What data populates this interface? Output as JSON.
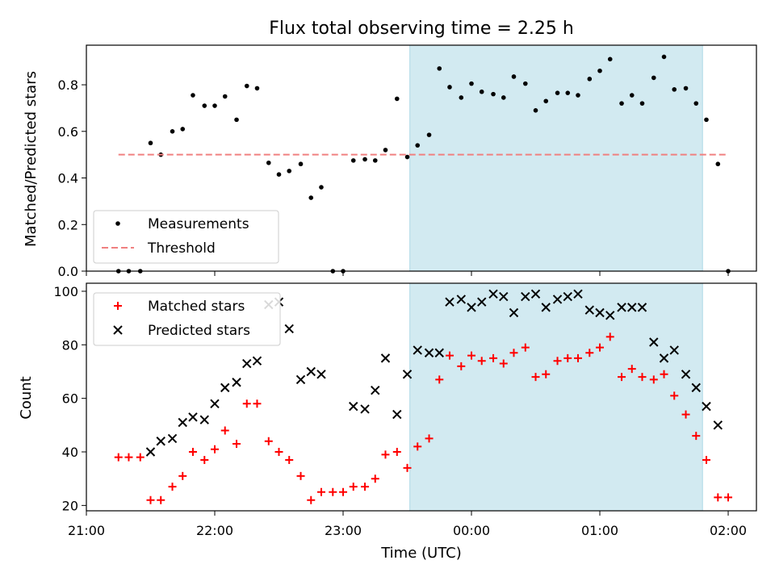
{
  "chart_data": {
    "type": "scatter",
    "title": "Flux total observing time = 2.25 h",
    "xlabel": "Time (UTC)",
    "x_ticks": [
      "21:00",
      "22:00",
      "23:00",
      "00:00",
      "01:00",
      "02:00"
    ],
    "x_range_hours": [
      -3.0,
      2.22
    ],
    "shaded_interval_hours": [
      -0.48,
      1.8
    ],
    "panels": [
      {
        "ylabel": "Matched/Predicted stars",
        "ylim": [
          0,
          0.97
        ],
        "yticks": [
          0.0,
          0.2,
          0.4,
          0.6,
          0.8
        ],
        "legend_position": "lower-left",
        "series": [
          {
            "name": "Measurements",
            "kind": "scatter",
            "color": "#000000",
            "points": [
              [
                -2.75,
                0.0
              ],
              [
                -2.67,
                0.0
              ],
              [
                -2.58,
                0.0
              ],
              [
                -2.5,
                0.55
              ],
              [
                -2.42,
                0.5
              ],
              [
                -2.33,
                0.6
              ],
              [
                -2.25,
                0.61
              ],
              [
                -2.17,
                0.755
              ],
              [
                -2.08,
                0.71
              ],
              [
                -2.0,
                0.71
              ],
              [
                -1.92,
                0.75
              ],
              [
                -1.83,
                0.65
              ],
              [
                -1.75,
                0.795
              ],
              [
                -1.67,
                0.785
              ],
              [
                -1.58,
                0.465
              ],
              [
                -1.5,
                0.415
              ],
              [
                -1.42,
                0.43
              ],
              [
                -1.33,
                0.46
              ],
              [
                -1.25,
                0.315
              ],
              [
                -1.17,
                0.36
              ],
              [
                -1.08,
                0.0
              ],
              [
                -1.0,
                0.0
              ],
              [
                -0.92,
                0.475
              ],
              [
                -0.83,
                0.48
              ],
              [
                -0.75,
                0.475
              ],
              [
                -0.67,
                0.52
              ],
              [
                -0.58,
                0.74
              ],
              [
                -0.5,
                0.49
              ],
              [
                -0.42,
                0.54
              ],
              [
                -0.33,
                0.585
              ],
              [
                -0.25,
                0.87
              ],
              [
                -0.17,
                0.79
              ],
              [
                -0.08,
                0.745
              ],
              [
                0.0,
                0.805
              ],
              [
                0.08,
                0.77
              ],
              [
                0.17,
                0.76
              ],
              [
                0.25,
                0.745
              ],
              [
                0.33,
                0.835
              ],
              [
                0.42,
                0.805
              ],
              [
                0.5,
                0.69
              ],
              [
                0.58,
                0.73
              ],
              [
                0.67,
                0.765
              ],
              [
                0.75,
                0.765
              ],
              [
                0.83,
                0.755
              ],
              [
                0.92,
                0.825
              ],
              [
                1.0,
                0.86
              ],
              [
                1.08,
                0.91
              ],
              [
                1.17,
                0.72
              ],
              [
                1.25,
                0.755
              ],
              [
                1.33,
                0.72
              ],
              [
                1.42,
                0.83
              ],
              [
                1.5,
                0.92
              ],
              [
                1.58,
                0.78
              ],
              [
                1.67,
                0.785
              ],
              [
                1.75,
                0.72
              ],
              [
                1.83,
                0.65
              ],
              [
                1.92,
                0.46
              ],
              [
                2.0,
                0.0
              ]
            ]
          },
          {
            "name": "Threshold",
            "kind": "line",
            "color": "#f08080",
            "points": [
              [
                -2.75,
                0.5
              ],
              [
                2.0,
                0.5
              ]
            ]
          }
        ]
      },
      {
        "ylabel": "Count",
        "ylim": [
          18,
          103
        ],
        "yticks": [
          20,
          40,
          60,
          80,
          100
        ],
        "legend_position": "upper-left",
        "series": [
          {
            "name": "Matched stars",
            "kind": "plus",
            "color": "#ff0000",
            "points": [
              [
                -2.75,
                38
              ],
              [
                -2.67,
                38
              ],
              [
                -2.58,
                38
              ],
              [
                -2.5,
                22
              ],
              [
                -2.42,
                22
              ],
              [
                -2.33,
                27
              ],
              [
                -2.25,
                31
              ],
              [
                -2.17,
                40
              ],
              [
                -2.08,
                37
              ],
              [
                -2.0,
                41
              ],
              [
                -1.92,
                48
              ],
              [
                -1.83,
                43
              ],
              [
                -1.75,
                58
              ],
              [
                -1.67,
                58
              ],
              [
                -1.58,
                44
              ],
              [
                -1.5,
                40
              ],
              [
                -1.42,
                37
              ],
              [
                -1.33,
                31
              ],
              [
                -1.25,
                22
              ],
              [
                -1.17,
                25
              ],
              [
                -1.08,
                25
              ],
              [
                -1.0,
                25
              ],
              [
                -0.92,
                27
              ],
              [
                -0.83,
                27
              ],
              [
                -0.75,
                30
              ],
              [
                -0.67,
                39
              ],
              [
                -0.58,
                40
              ],
              [
                -0.5,
                34
              ],
              [
                -0.42,
                42
              ],
              [
                -0.33,
                45
              ],
              [
                -0.25,
                67
              ],
              [
                -0.17,
                76
              ],
              [
                -0.08,
                72
              ],
              [
                0.0,
                76
              ],
              [
                0.08,
                74
              ],
              [
                0.17,
                75
              ],
              [
                0.25,
                73
              ],
              [
                0.33,
                77
              ],
              [
                0.42,
                79
              ],
              [
                0.5,
                68
              ],
              [
                0.58,
                69
              ],
              [
                0.67,
                74
              ],
              [
                0.75,
                75
              ],
              [
                0.83,
                75
              ],
              [
                0.92,
                77
              ],
              [
                1.0,
                79
              ],
              [
                1.08,
                83
              ],
              [
                1.17,
                68
              ],
              [
                1.25,
                71
              ],
              [
                1.33,
                68
              ],
              [
                1.42,
                67
              ],
              [
                1.5,
                69
              ],
              [
                1.58,
                61
              ],
              [
                1.67,
                54
              ],
              [
                1.75,
                46
              ],
              [
                1.83,
                37
              ],
              [
                1.92,
                23
              ],
              [
                2.0,
                23
              ]
            ]
          },
          {
            "name": "Predicted stars",
            "kind": "x",
            "color": "#000000",
            "points": [
              [
                -2.5,
                40
              ],
              [
                -2.42,
                44
              ],
              [
                -2.33,
                45
              ],
              [
                -2.25,
                51
              ],
              [
                -2.17,
                53
              ],
              [
                -2.08,
                52
              ],
              [
                -2.0,
                58
              ],
              [
                -1.92,
                64
              ],
              [
                -1.83,
                66
              ],
              [
                -1.75,
                73
              ],
              [
                -1.67,
                74
              ],
              [
                -1.58,
                95
              ],
              [
                -1.5,
                96
              ],
              [
                -1.42,
                86
              ],
              [
                -1.33,
                67
              ],
              [
                -1.25,
                70
              ],
              [
                -1.17,
                69
              ],
              [
                -0.92,
                57
              ],
              [
                -0.83,
                56
              ],
              [
                -0.75,
                63
              ],
              [
                -0.67,
                75
              ],
              [
                -0.58,
                54
              ],
              [
                -0.5,
                69
              ],
              [
                -0.42,
                78
              ],
              [
                -0.33,
                77
              ],
              [
                -0.25,
                77
              ],
              [
                -0.17,
                96
              ],
              [
                -0.08,
                97
              ],
              [
                0.0,
                94
              ],
              [
                0.08,
                96
              ],
              [
                0.17,
                99
              ],
              [
                0.25,
                98
              ],
              [
                0.33,
                92
              ],
              [
                0.42,
                98
              ],
              [
                0.5,
                99
              ],
              [
                0.58,
                94
              ],
              [
                0.67,
                97
              ],
              [
                0.75,
                98
              ],
              [
                0.83,
                99
              ],
              [
                0.92,
                93
              ],
              [
                1.0,
                92
              ],
              [
                1.08,
                91
              ],
              [
                1.17,
                94
              ],
              [
                1.25,
                94
              ],
              [
                1.33,
                94
              ],
              [
                1.42,
                81
              ],
              [
                1.5,
                75
              ],
              [
                1.58,
                78
              ],
              [
                1.67,
                69
              ],
              [
                1.75,
                64
              ],
              [
                1.83,
                57
              ],
              [
                1.92,
                50
              ]
            ]
          }
        ]
      }
    ],
    "colors": {
      "shade": "#add8e6",
      "threshold": "#f08080",
      "matched": "#ff0000",
      "predicted": "#000000"
    }
  }
}
